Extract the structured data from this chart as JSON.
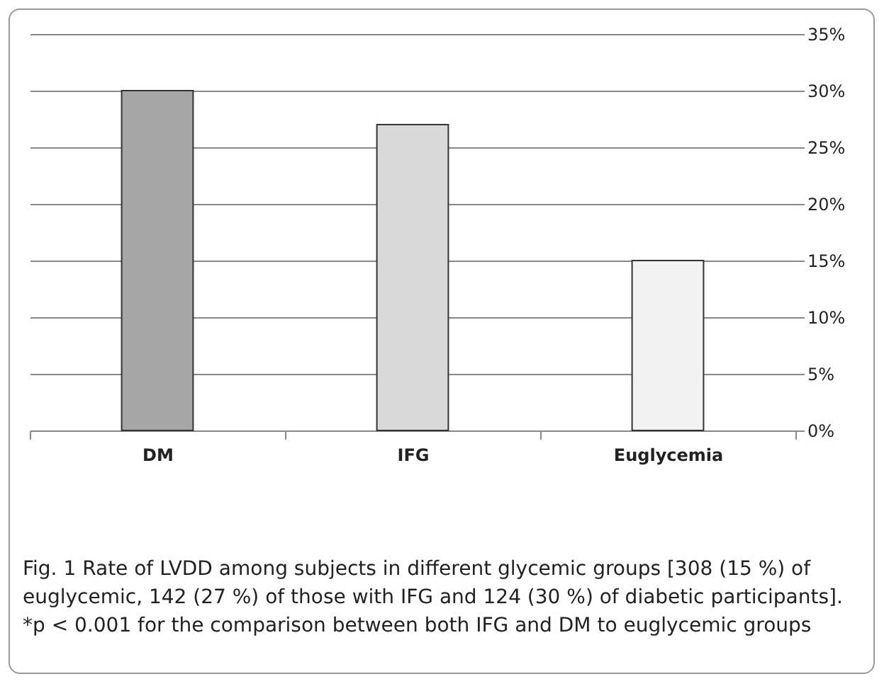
{
  "chart_data": {
    "type": "bar",
    "categories": [
      "DM",
      "IFG",
      "Euglycemia"
    ],
    "values": [
      30,
      27,
      15
    ],
    "colors": [
      "#a6a6a6",
      "#d9d9d9",
      "#f2f2f2"
    ],
    "ylim": [
      0,
      35
    ],
    "yticks": [
      {
        "value": 0,
        "label": "0%"
      },
      {
        "value": 5,
        "label": "5%"
      },
      {
        "value": 10,
        "label": "10%"
      },
      {
        "value": 15,
        "label": "15%"
      },
      {
        "value": 20,
        "label": "20%"
      },
      {
        "value": 25,
        "label": "25%"
      },
      {
        "value": 30,
        "label": "30%"
      },
      {
        "value": 35,
        "label": "35%"
      }
    ],
    "grid": "y",
    "annotations": [
      "Fig. 1  Rate of LVDD among subjects in different glycemic groups [308 (15 %) of euglycemic, 142 (27 %) of those with IFG and 124 (30 %) of diabetic participants]. *p < 0.001 for the comparison between both IFG and DM to euglycemic groups"
    ]
  }
}
